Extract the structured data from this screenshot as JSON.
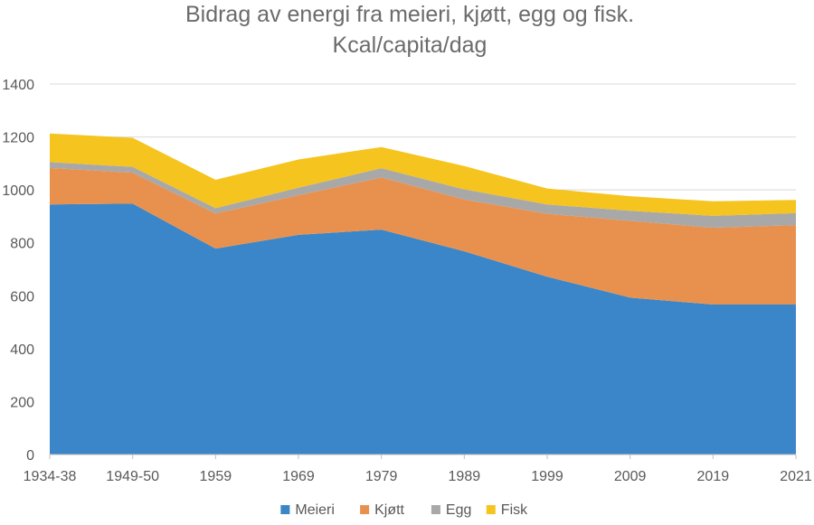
{
  "chart_data": {
    "type": "area",
    "stacked": true,
    "title_lines": [
      "Bidrag av energi fra meieri, kjøtt, egg og fisk.",
      "Kcal/capita/dag"
    ],
    "xlabel": "",
    "ylabel": "",
    "categories": [
      "1934-38",
      "1949-50",
      "1959",
      "1969",
      "1979",
      "1989",
      "1999",
      "2009",
      "2019",
      "2021"
    ],
    "ylim": [
      0,
      1400
    ],
    "yticks": [
      0,
      200,
      400,
      600,
      800,
      1000,
      1200,
      1400
    ],
    "grid": true,
    "legend_position": "bottom",
    "series": [
      {
        "name": "Meieri",
        "color": "#3a86c8",
        "values": [
          945,
          948,
          778,
          830,
          850,
          768,
          672,
          593,
          567,
          567
        ]
      },
      {
        "name": "Kjøtt",
        "color": "#e8914f",
        "values": [
          138,
          117,
          133,
          150,
          197,
          196,
          238,
          290,
          290,
          300
        ]
      },
      {
        "name": "Egg",
        "color": "#a8a8a8",
        "values": [
          22,
          22,
          20,
          28,
          35,
          38,
          35,
          38,
          45,
          45
        ]
      },
      {
        "name": "Fisk",
        "color": "#f5c41f",
        "values": [
          108,
          110,
          107,
          107,
          80,
          88,
          60,
          55,
          55,
          50
        ]
      }
    ]
  }
}
